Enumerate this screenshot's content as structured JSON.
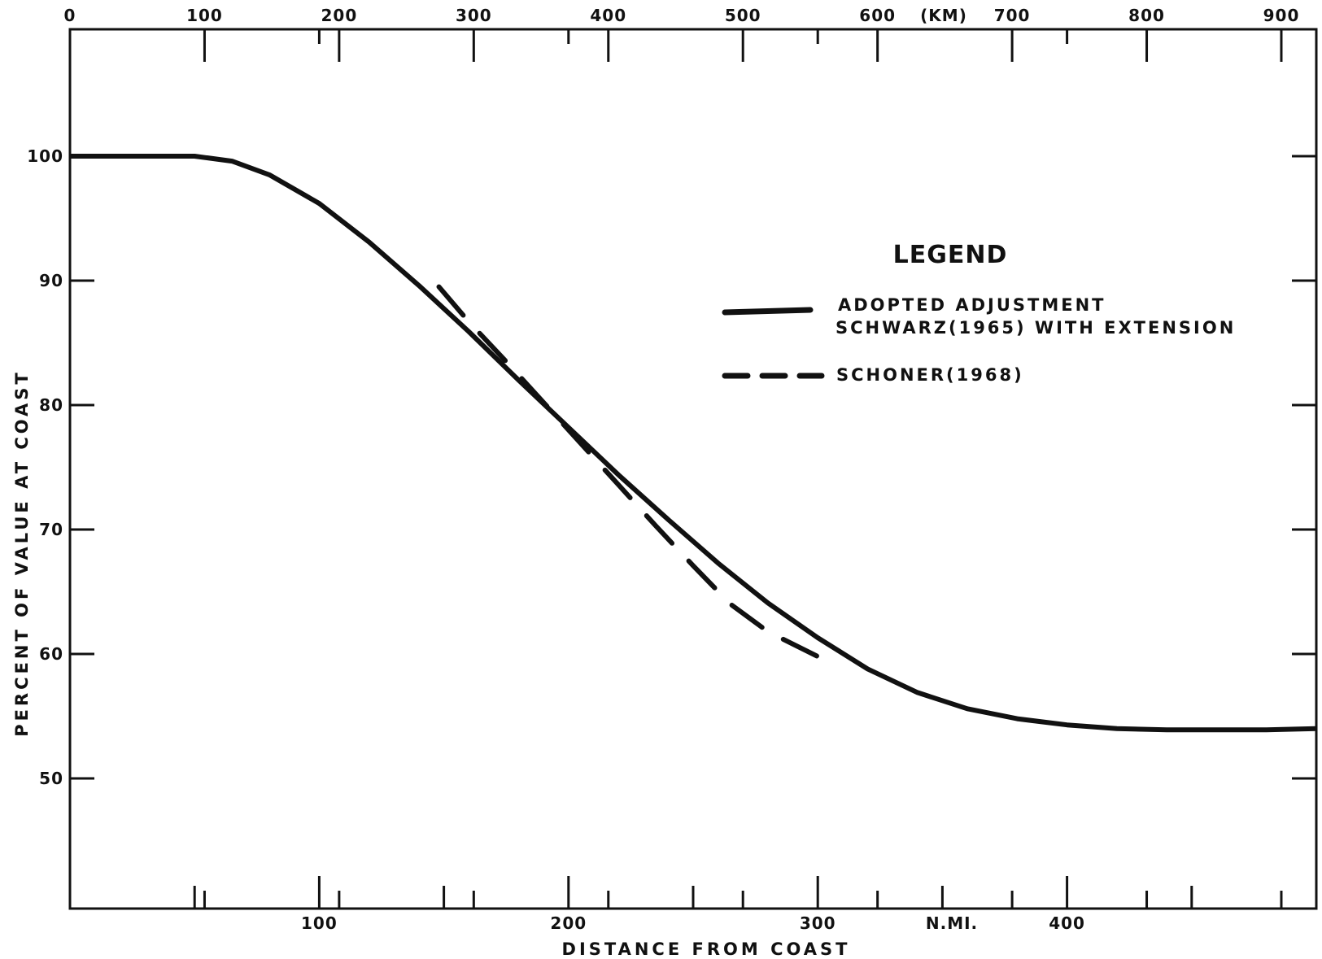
{
  "chart_data": {
    "type": "line",
    "title": "",
    "xlabel": "DISTANCE FROM COAST",
    "ylabel": "PERCENT OF VALUE AT COAST",
    "x_unit_label": "N.MI.",
    "x2_unit_label": "(KM)",
    "xlim": [
      0,
      500
    ],
    "ylim": [
      40,
      110
    ],
    "x_ticks": [
      100,
      200,
      300,
      400
    ],
    "x_ticks_minor": [
      50,
      150,
      250,
      350,
      450
    ],
    "x2_ticks": [
      0,
      100,
      200,
      300,
      400,
      500,
      600,
      700,
      800,
      900
    ],
    "y_ticks": [
      50,
      60,
      70,
      80,
      90,
      100
    ],
    "grid": false,
    "legend": {
      "title": "LEGEND",
      "position": "upper-right",
      "entries": [
        {
          "line1": "ADOPTED  ADJUSTMENT",
          "line2": "SCHWARZ(1965)  WITH  EXTENSION",
          "style": "solid"
        },
        {
          "line1": "SCHONER(1968)",
          "line2": "",
          "style": "dashed"
        }
      ]
    },
    "series": [
      {
        "name": "ADOPTED ADJUSTMENT SCHWARZ(1965) WITH EXTENSION",
        "style": "solid",
        "x": [
          0,
          25,
          50,
          65,
          80,
          100,
          120,
          140,
          160,
          180,
          200,
          220,
          240,
          260,
          280,
          300,
          320,
          340,
          360,
          380,
          400,
          420,
          440,
          460,
          480,
          500
        ],
        "y": [
          100,
          100,
          100,
          99.6,
          98.5,
          96.2,
          93.1,
          89.6,
          85.9,
          82.0,
          78.2,
          74.4,
          70.8,
          67.3,
          64.1,
          61.3,
          58.8,
          56.9,
          55.6,
          54.8,
          54.3,
          54.0,
          53.9,
          53.9,
          53.9,
          54.0
        ]
      },
      {
        "name": "SCHONER(1968)",
        "style": "dashed",
        "x": [
          148,
          160,
          175,
          190,
          205,
          220,
          235,
          250,
          265,
          280,
          300
        ],
        "y": [
          89.5,
          86.7,
          83.5,
          80.2,
          76.9,
          73.6,
          70.3,
          67.1,
          64.0,
          61.8,
          59.8
        ]
      }
    ]
  }
}
